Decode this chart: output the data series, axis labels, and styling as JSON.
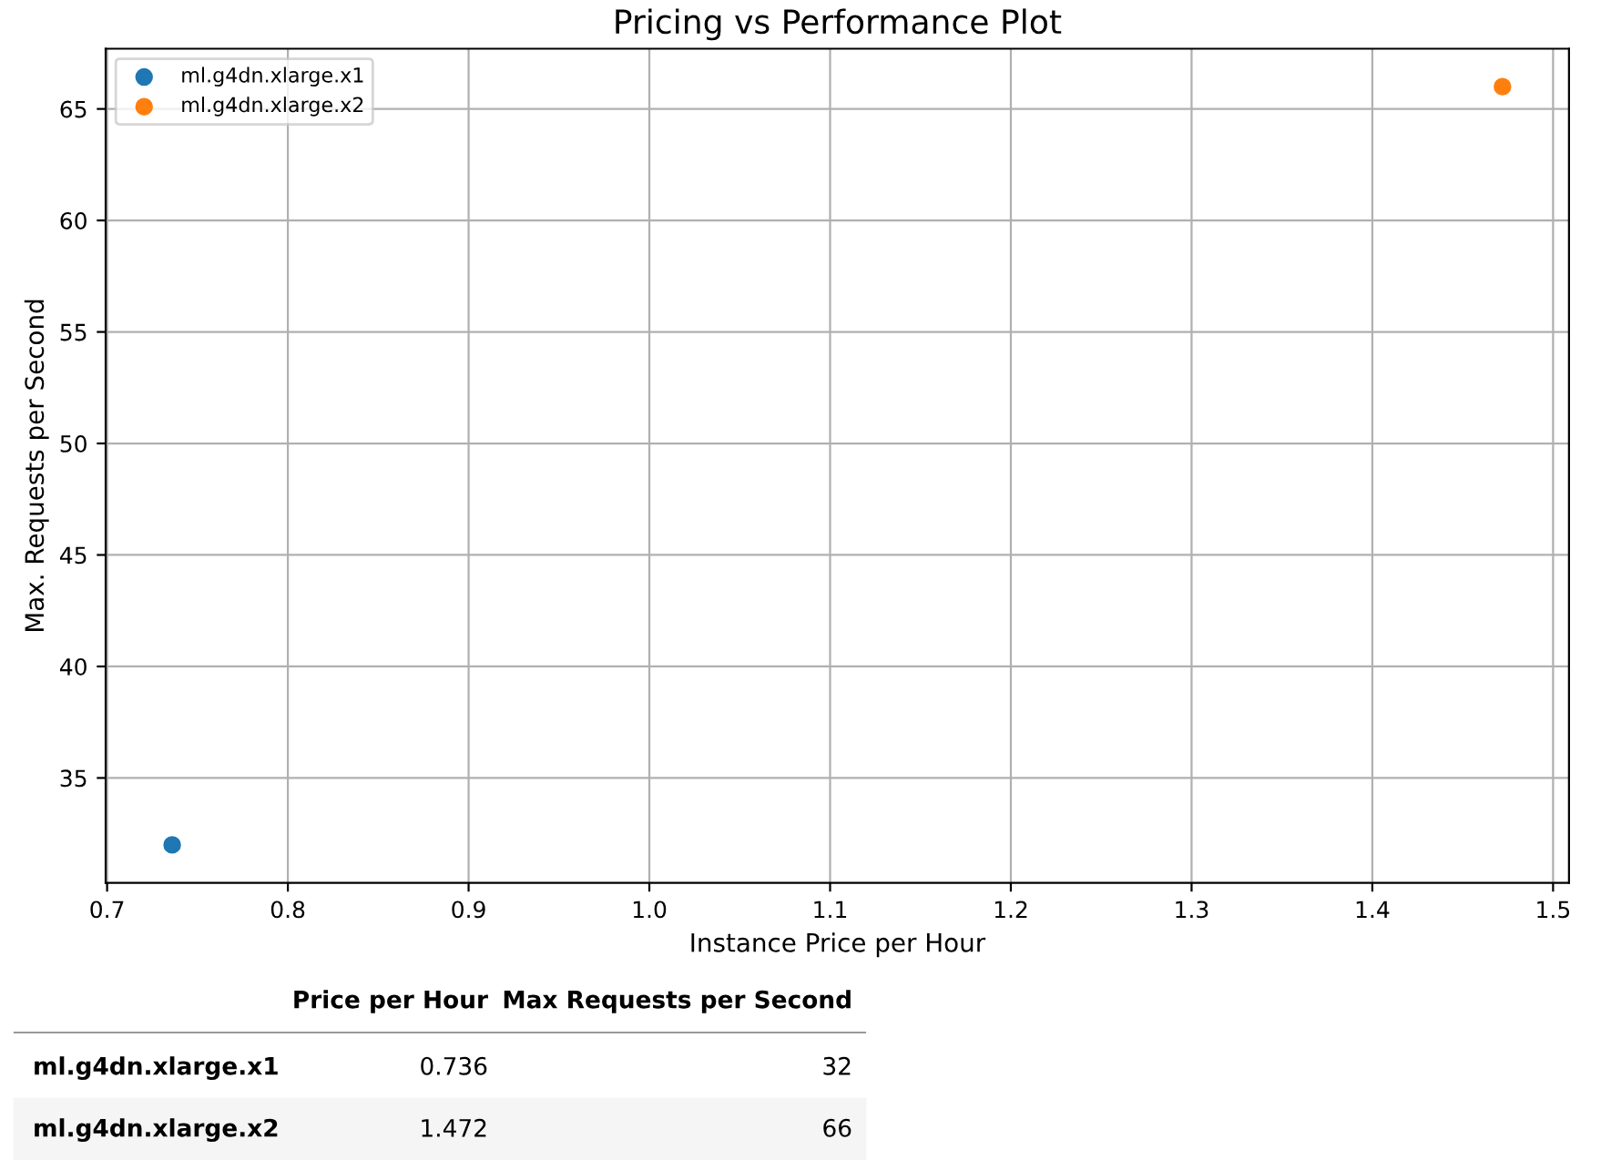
{
  "chart_data": {
    "type": "scatter",
    "title": "Pricing vs Performance Plot",
    "xlabel": "Instance Price per Hour",
    "ylabel": "Max. Requests per Second",
    "series": [
      {
        "name": "ml.g4dn.xlarge.x1",
        "color": "#1f77b4",
        "x": [
          0.736
        ],
        "values": [
          32
        ]
      },
      {
        "name": "ml.g4dn.xlarge.x2",
        "color": "#ff7f0e",
        "x": [
          1.472
        ],
        "values": [
          66
        ]
      }
    ],
    "xlim": [
      0.6992,
      1.5088
    ],
    "xticks": [
      {
        "value": 0.7,
        "label": "0.7"
      },
      {
        "value": 0.8,
        "label": "0.8"
      },
      {
        "value": 0.9,
        "label": "0.9"
      },
      {
        "value": 1.0,
        "label": "1.0"
      },
      {
        "value": 1.1,
        "label": "1.1"
      },
      {
        "value": 1.2,
        "label": "1.2"
      },
      {
        "value": 1.3,
        "label": "1.3"
      },
      {
        "value": 1.4,
        "label": "1.4"
      },
      {
        "value": 1.5,
        "label": "1.5"
      }
    ],
    "ylim": [
      30.3,
      67.7
    ],
    "yticks": [
      35,
      40,
      45,
      50,
      55,
      60,
      65
    ],
    "grid": true,
    "legend": "top left",
    "marker": "circle",
    "annotations": [
      "Price per Hour",
      "Max Requests per Second",
      "0.736",
      "32",
      "1.472",
      "66"
    ]
  }
}
